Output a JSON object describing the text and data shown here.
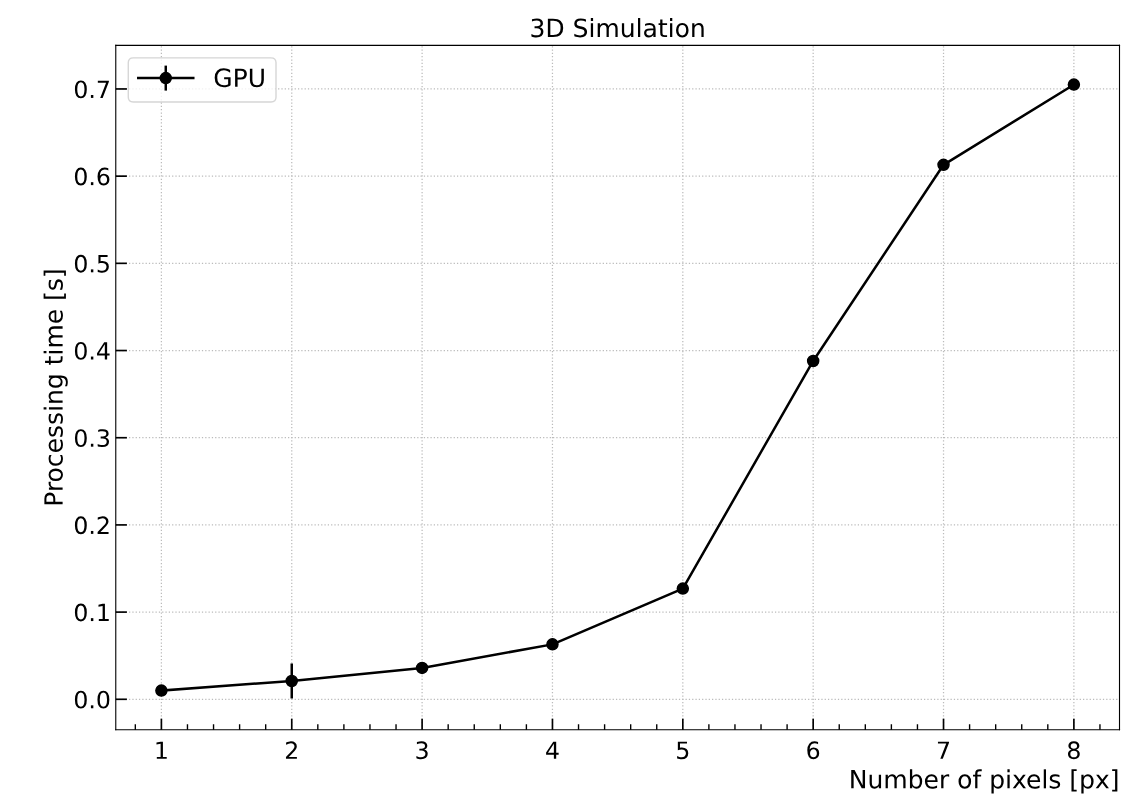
{
  "chart_data": {
    "type": "line",
    "title": "3D Simulation",
    "xlabel": "Number of pixels [px]",
    "ylabel": "Processing time [s]",
    "x": [
      1,
      2,
      3,
      4,
      5,
      6,
      7,
      8
    ],
    "series": [
      {
        "name": "GPU",
        "color": "#000000",
        "values": [
          0.01,
          0.021,
          0.036,
          0.063,
          0.127,
          0.388,
          0.613,
          0.705
        ],
        "errors": [
          null,
          0.02,
          null,
          null,
          null,
          null,
          null,
          null
        ]
      }
    ],
    "xlim": [
      0.65,
      8.35
    ],
    "ylim": [
      -0.035,
      0.75
    ],
    "xticks": [
      1,
      2,
      3,
      4,
      5,
      6,
      7,
      8,
      {
        "value": 0.8,
        "label": null
      },
      {
        "value": 1.2,
        "label": null
      },
      {
        "value": 1.4,
        "label": null
      },
      {
        "value": 1.6,
        "label": null
      },
      {
        "value": 1.8,
        "label": null
      },
      {
        "value": 2.2,
        "label": null
      },
      {
        "value": 2.4,
        "label": null
      },
      {
        "value": 2.6,
        "label": null
      },
      {
        "value": 2.8,
        "label": null
      },
      {
        "value": 3.2,
        "label": null
      },
      {
        "value": 3.4,
        "label": null
      },
      {
        "value": 3.6,
        "label": null
      },
      {
        "value": 3.8,
        "label": null
      },
      {
        "value": 4.2,
        "label": null
      },
      {
        "value": 4.4,
        "label": null
      },
      {
        "value": 4.6,
        "label": null
      },
      {
        "value": 4.8,
        "label": null
      },
      {
        "value": 5.2,
        "label": null
      },
      {
        "value": 5.4,
        "label": null
      },
      {
        "value": 5.6,
        "label": null
      },
      {
        "value": 5.8,
        "label": null
      },
      {
        "value": 6.2,
        "label": null
      },
      {
        "value": 6.4,
        "label": null
      },
      {
        "value": 6.6,
        "label": null
      },
      {
        "value": 6.8,
        "label": null
      },
      {
        "value": 7.2,
        "label": null
      },
      {
        "value": 7.4,
        "label": null
      },
      {
        "value": 7.6,
        "label": null
      },
      {
        "value": 7.8,
        "label": null
      },
      {
        "value": 8.2,
        "label": null
      }
    ],
    "yticks": [
      {
        "value": 0.0,
        "label": "0.0"
      },
      0.1,
      0.2,
      0.3,
      0.4,
      0.5,
      0.6,
      0.7
    ],
    "grid": true,
    "legend": "top left",
    "marker": "circle",
    "line_style": "solid"
  }
}
